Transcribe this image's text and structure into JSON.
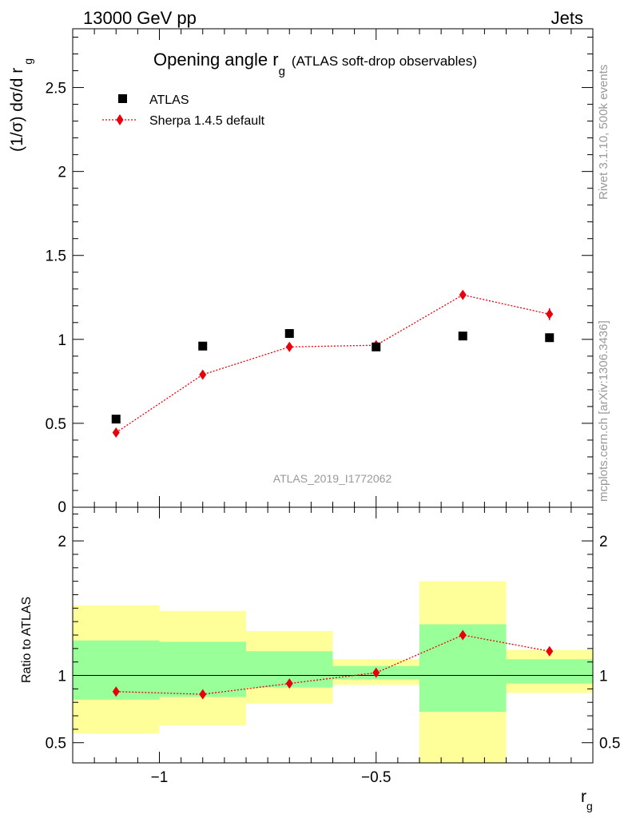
{
  "header": {
    "left_label": "13000 GeV pp",
    "right_label": "Jets",
    "analysis_id": "ATLAS_2019_I1772062",
    "side_label_top": "Rivet 3.1.10,  500k events",
    "side_label_bottom": "mcplots.cern.ch [arXiv:1306.3436]"
  },
  "colors": {
    "data": "#000000",
    "mc": "#e8000b",
    "band_inner": "#99ff99",
    "band_outer": "#ffff99",
    "watermark": "#999999"
  },
  "chart_data": [
    {
      "type": "scatter",
      "panel": "main",
      "title_main": "Opening angle r",
      "title_sub": "g",
      "title_rest": "(ATLAS soft-drop observables)",
      "ylabel_main": "(1/σ) dσ/d r",
      "ylabel_sub": "g",
      "xlim": [
        -1.2,
        0.0
      ],
      "ylim": [
        0,
        2.85
      ],
      "yticks": [
        0.5,
        1,
        1.5,
        2,
        2.5
      ],
      "ytick_labels": [
        "0.5",
        "1",
        "1.5",
        "2",
        "2.5"
      ],
      "ytick_bottom_label": "0",
      "legend_position": "top-left",
      "series": [
        {
          "name": "ATLAS",
          "marker": "square",
          "x": [
            -1.1,
            -0.9,
            -0.7,
            -0.5,
            -0.3,
            -0.1
          ],
          "y": [
            0.525,
            0.96,
            1.035,
            0.955,
            1.02,
            1.01
          ]
        },
        {
          "name": "Sherpa 1.4.5 default",
          "marker": "diamond",
          "line": "dotted",
          "x": [
            -1.1,
            -0.9,
            -0.7,
            -0.5,
            -0.3,
            -0.1
          ],
          "y": [
            0.445,
            0.79,
            0.955,
            0.965,
            1.265,
            1.15
          ],
          "yerr": [
            0.02,
            0.015,
            0.015,
            0.015,
            0.015,
            0.035
          ]
        }
      ]
    },
    {
      "type": "scatter",
      "panel": "ratio",
      "ylabel": "Ratio to ATLAS",
      "xlabel_main": "r",
      "xlabel_sub": "g",
      "xlim": [
        -1.2,
        0.0
      ],
      "ylim": [
        0.35,
        2.25
      ],
      "yticks": [
        0.5,
        1,
        2
      ],
      "ytick_labels": [
        "0.5",
        "1",
        "2"
      ],
      "xticks": [
        -1,
        -0.5
      ],
      "xtick_labels": [
        "−1",
        "−0.5"
      ],
      "bands": [
        {
          "x0": -1.2,
          "x1": -1.0,
          "inner": [
            0.82,
            1.26
          ],
          "outer": [
            0.57,
            1.52
          ]
        },
        {
          "x0": -1.0,
          "x1": -0.8,
          "inner": [
            0.84,
            1.25
          ],
          "outer": [
            0.63,
            1.48
          ]
        },
        {
          "x0": -0.8,
          "x1": -0.6,
          "inner": [
            0.91,
            1.18
          ],
          "outer": [
            0.79,
            1.33
          ]
        },
        {
          "x0": -0.6,
          "x1": -0.4,
          "inner": [
            0.97,
            1.07
          ],
          "outer": [
            0.93,
            1.12
          ]
        },
        {
          "x0": -0.4,
          "x1": -0.2,
          "inner": [
            0.73,
            1.38
          ],
          "outer": [
            0.3,
            1.7
          ]
        },
        {
          "x0": -0.2,
          "x1": 0.0,
          "inner": [
            0.94,
            1.12
          ],
          "outer": [
            0.87,
            1.19
          ]
        }
      ],
      "series": [
        {
          "name": "Sherpa 1.4.5 default",
          "marker": "diamond",
          "line": "dotted",
          "x": [
            -1.1,
            -0.9,
            -0.7,
            -0.5,
            -0.3,
            -0.1
          ],
          "y": [
            0.88,
            0.86,
            0.94,
            1.02,
            1.3,
            1.18
          ]
        }
      ]
    }
  ]
}
